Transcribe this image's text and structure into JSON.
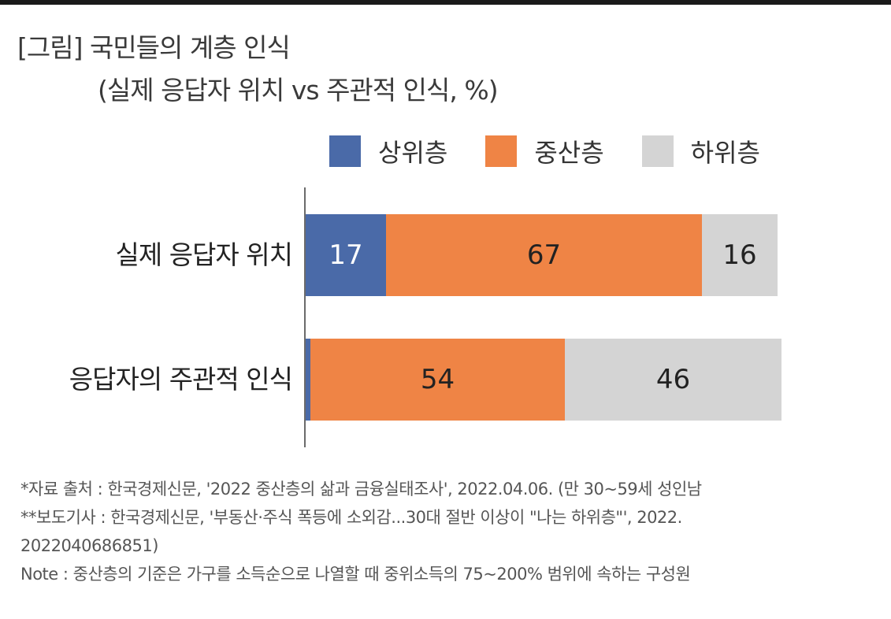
{
  "title": "[그림] 국민들의 계층 인식",
  "subtitle": "(실제 응답자 위치 vs 주관적 인식, %)",
  "chart_data": {
    "type": "bar",
    "orientation": "horizontal",
    "stacked": true,
    "title": "[그림] 국민들의 계층 인식",
    "subtitle": "(실제 응답자 위치 vs 주관적 인식, %)",
    "categories": [
      "실제 응답자 위치",
      "응답자의 주관적 인식"
    ],
    "series": [
      {
        "name": "상위층",
        "color": "#4a6aa8",
        "label_color": "#ffffff",
        "values": [
          17,
          1
        ]
      },
      {
        "name": "중산층",
        "color": "#ef8445",
        "label_color": "#222222",
        "values": [
          67,
          54
        ]
      },
      {
        "name": "하위층",
        "color": "#d4d4d4",
        "label_color": "#222222",
        "values": [
          16,
          46
        ]
      }
    ],
    "legend_position": "top",
    "grid": false,
    "xlim": [
      0,
      101
    ]
  },
  "notes": [
    "*자료 출처 : 한국경제신문, '2022 중산층의 삶과 금융실태조사', 2022.04.06. (만 30~59세 성인남",
    "**보도기사 : 한국경제신문, '부동산·주식 폭등에 소외감...30대 절반 이상이 \"나는 하위층\"', 2022.",
    "2022040686851)",
    "Note : 중산층의 기준은 가구를 소득순으로 나열할 때 중위소득의 75~200% 범위에 속하는 구성원"
  ]
}
